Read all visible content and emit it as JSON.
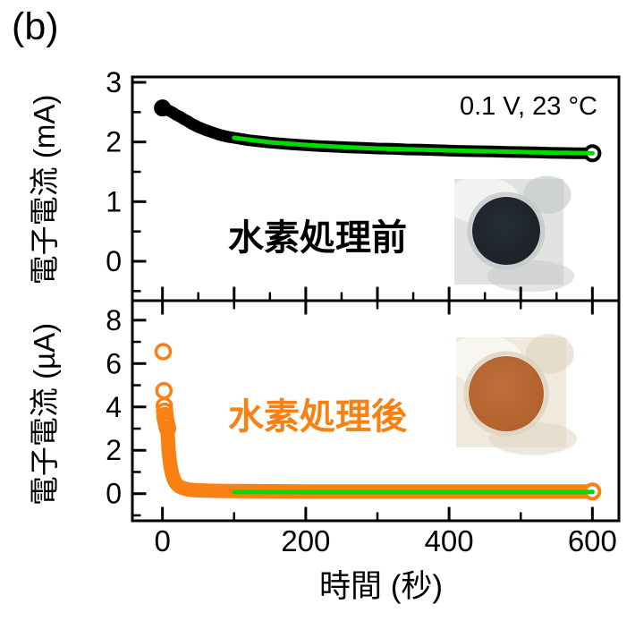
{
  "figure_label": "(b)",
  "annotation": "0.1 V, 23 °C",
  "colors": {
    "axis": "#000000",
    "before_series": "#000000",
    "after_series": "#F98012",
    "fit_line": "#00DC00"
  },
  "xaxis": {
    "label": "時間 (秒)",
    "lim": [
      -42,
      637
    ],
    "major_ticks": [
      0,
      200,
      400,
      600
    ],
    "minor_ticks": [
      100,
      300,
      500
    ],
    "tick_labels": [
      "0",
      "200",
      "400",
      "600"
    ]
  },
  "chart_data": [
    {
      "type": "scatter",
      "panel": "top",
      "ylabel": "電子電流 (mA)",
      "caption": "水素処理前",
      "caption_color": "#000000",
      "ylim": [
        -0.66,
        3.09
      ],
      "y_major_ticks": [
        0,
        1,
        2,
        3
      ],
      "y_tick_labels": [
        "0",
        "1",
        "2",
        "3"
      ],
      "y_minor_ticks": [
        -0.5,
        0.5,
        1.5,
        2.5
      ],
      "x_edge_ticks": {
        "bottom_major": [
          0,
          100,
          200,
          300,
          400,
          500,
          600
        ],
        "bottom_minor": [
          50,
          150,
          250,
          350,
          450,
          550
        ],
        "top_major": [],
        "top_minor": []
      },
      "series": [
        {
          "name": "current-before-hydrogen",
          "style": "band",
          "color": "#000000",
          "width": 13,
          "start_cap": 9.5,
          "points": [
            [
              0,
              2.57
            ],
            [
              2,
              2.56
            ],
            [
              4,
              2.55
            ],
            [
              6,
              2.54
            ],
            [
              8,
              2.53
            ],
            [
              10,
              2.52
            ],
            [
              13,
              2.5
            ],
            [
              16,
              2.48
            ],
            [
              20,
              2.45
            ],
            [
              25,
              2.42
            ],
            [
              30,
              2.38
            ],
            [
              35,
              2.35
            ],
            [
              40,
              2.31
            ],
            [
              45,
              2.28
            ],
            [
              50,
              2.25
            ],
            [
              60,
              2.2
            ],
            [
              70,
              2.16
            ],
            [
              80,
              2.12
            ],
            [
              90,
              2.09
            ],
            [
              100,
              2.07
            ],
            [
              110,
              2.05
            ],
            [
              120,
              2.03
            ],
            [
              135,
              2.01
            ],
            [
              150,
              1.99
            ],
            [
              165,
              1.975
            ],
            [
              180,
              1.96
            ],
            [
              200,
              1.945
            ],
            [
              220,
              1.93
            ],
            [
              240,
              1.92
            ],
            [
              260,
              1.91
            ],
            [
              280,
              1.9
            ],
            [
              300,
              1.89
            ],
            [
              320,
              1.885
            ],
            [
              340,
              1.875
            ],
            [
              360,
              1.87
            ],
            [
              380,
              1.865
            ],
            [
              400,
              1.855
            ],
            [
              420,
              1.85
            ],
            [
              440,
              1.845
            ],
            [
              460,
              1.84
            ],
            [
              480,
              1.835
            ],
            [
              500,
              1.83
            ],
            [
              520,
              1.825
            ],
            [
              540,
              1.82
            ],
            [
              560,
              1.815
            ],
            [
              580,
              1.81
            ],
            [
              600,
              1.81
            ]
          ]
        },
        {
          "name": "final-point-before",
          "style": "open-circle",
          "color": "#000000",
          "radius": 8,
          "stroke": 4,
          "points": [
            [
              600,
              1.81
            ]
          ]
        },
        {
          "name": "fit-before",
          "style": "line",
          "color": "#00DC00",
          "width": 5,
          "points": [
            [
              100,
              2.07
            ],
            [
              150,
              1.995
            ],
            [
              200,
              1.95
            ],
            [
              250,
              1.915
            ],
            [
              300,
              1.89
            ],
            [
              350,
              1.875
            ],
            [
              400,
              1.858
            ],
            [
              450,
              1.845
            ],
            [
              500,
              1.832
            ],
            [
              550,
              1.82
            ],
            [
              600,
              1.81
            ]
          ]
        }
      ],
      "inset": {
        "description": "photo of black sample disk before hydrogen treatment",
        "disk_color": "#262d34",
        "disk_edge_color": "#1c2127",
        "halo_color": "#c3c8c9",
        "bg_color": "#e2e2e0"
      }
    },
    {
      "type": "scatter",
      "panel": "bottom",
      "ylabel": "電子電流 (µA)",
      "caption": "水素処理後",
      "caption_color": "#F98012",
      "ylim": [
        -1.25,
        8.9
      ],
      "y_major_ticks": [
        0,
        2,
        4,
        6,
        8
      ],
      "y_tick_labels": [
        "0",
        "2",
        "4",
        "6",
        "8"
      ],
      "y_minor_ticks": [
        -1,
        1,
        3,
        5,
        7
      ],
      "x_edge_ticks": {
        "bottom_major": [
          0,
          200,
          400,
          600
        ],
        "bottom_minor": [
          100,
          300,
          500
        ],
        "top_major": [
          0,
          200,
          400,
          600
        ],
        "top_minor": [
          100,
          300,
          500
        ]
      },
      "x_tick_labels_shown": true,
      "series": [
        {
          "name": "initial-spike-after-hydrogen",
          "style": "open-circles",
          "color": "#F98012",
          "radius": 8,
          "stroke": 3.5,
          "points": [
            [
              1,
              6.55
            ],
            [
              2,
              4.75
            ],
            [
              2.5,
              4.05
            ],
            [
              3,
              3.8
            ],
            [
              3.5,
              3.6
            ],
            [
              4,
              3.45
            ],
            [
              5,
              3.3
            ],
            [
              6,
              3.15
            ],
            [
              7,
              3.0
            ]
          ]
        },
        {
          "name": "current-after-hydrogen",
          "style": "band",
          "color": "#F98012",
          "width": 16,
          "points": [
            [
              7,
              2.95
            ],
            [
              7.5,
              2.6
            ],
            [
              8,
              2.3
            ],
            [
              8.5,
              2.05
            ],
            [
              9,
              1.85
            ],
            [
              10,
              1.55
            ],
            [
              11,
              1.3
            ],
            [
              12,
              1.12
            ],
            [
              13,
              0.97
            ],
            [
              14,
              0.85
            ],
            [
              16,
              0.65
            ],
            [
              18,
              0.52
            ],
            [
              20,
              0.43
            ],
            [
              24,
              0.32
            ],
            [
              28,
              0.26
            ],
            [
              35,
              0.2
            ],
            [
              45,
              0.16
            ],
            [
              60,
              0.14
            ],
            [
              80,
              0.13
            ],
            [
              100,
              0.12
            ],
            [
              150,
              0.11
            ],
            [
              200,
              0.1
            ],
            [
              300,
              0.1
            ],
            [
              400,
              0.1
            ],
            [
              500,
              0.1
            ],
            [
              600,
              0.1
            ]
          ]
        },
        {
          "name": "final-point-after",
          "style": "open-circle",
          "color": "#F98012",
          "radius": 8,
          "stroke": 4,
          "points": [
            [
              600,
              0.1
            ]
          ]
        },
        {
          "name": "fit-after",
          "style": "line",
          "color": "#00DC00",
          "width": 5,
          "points": [
            [
              100,
              0.08
            ],
            [
              600,
              0.08
            ]
          ]
        }
      ],
      "inset": {
        "description": "photo of orange sample disk after hydrogen treatment",
        "disk_color": "#c17039",
        "disk_edge_color": "#b0602c",
        "halo_color": "#ddd2bf",
        "bg_color": "#efeadd"
      }
    }
  ]
}
